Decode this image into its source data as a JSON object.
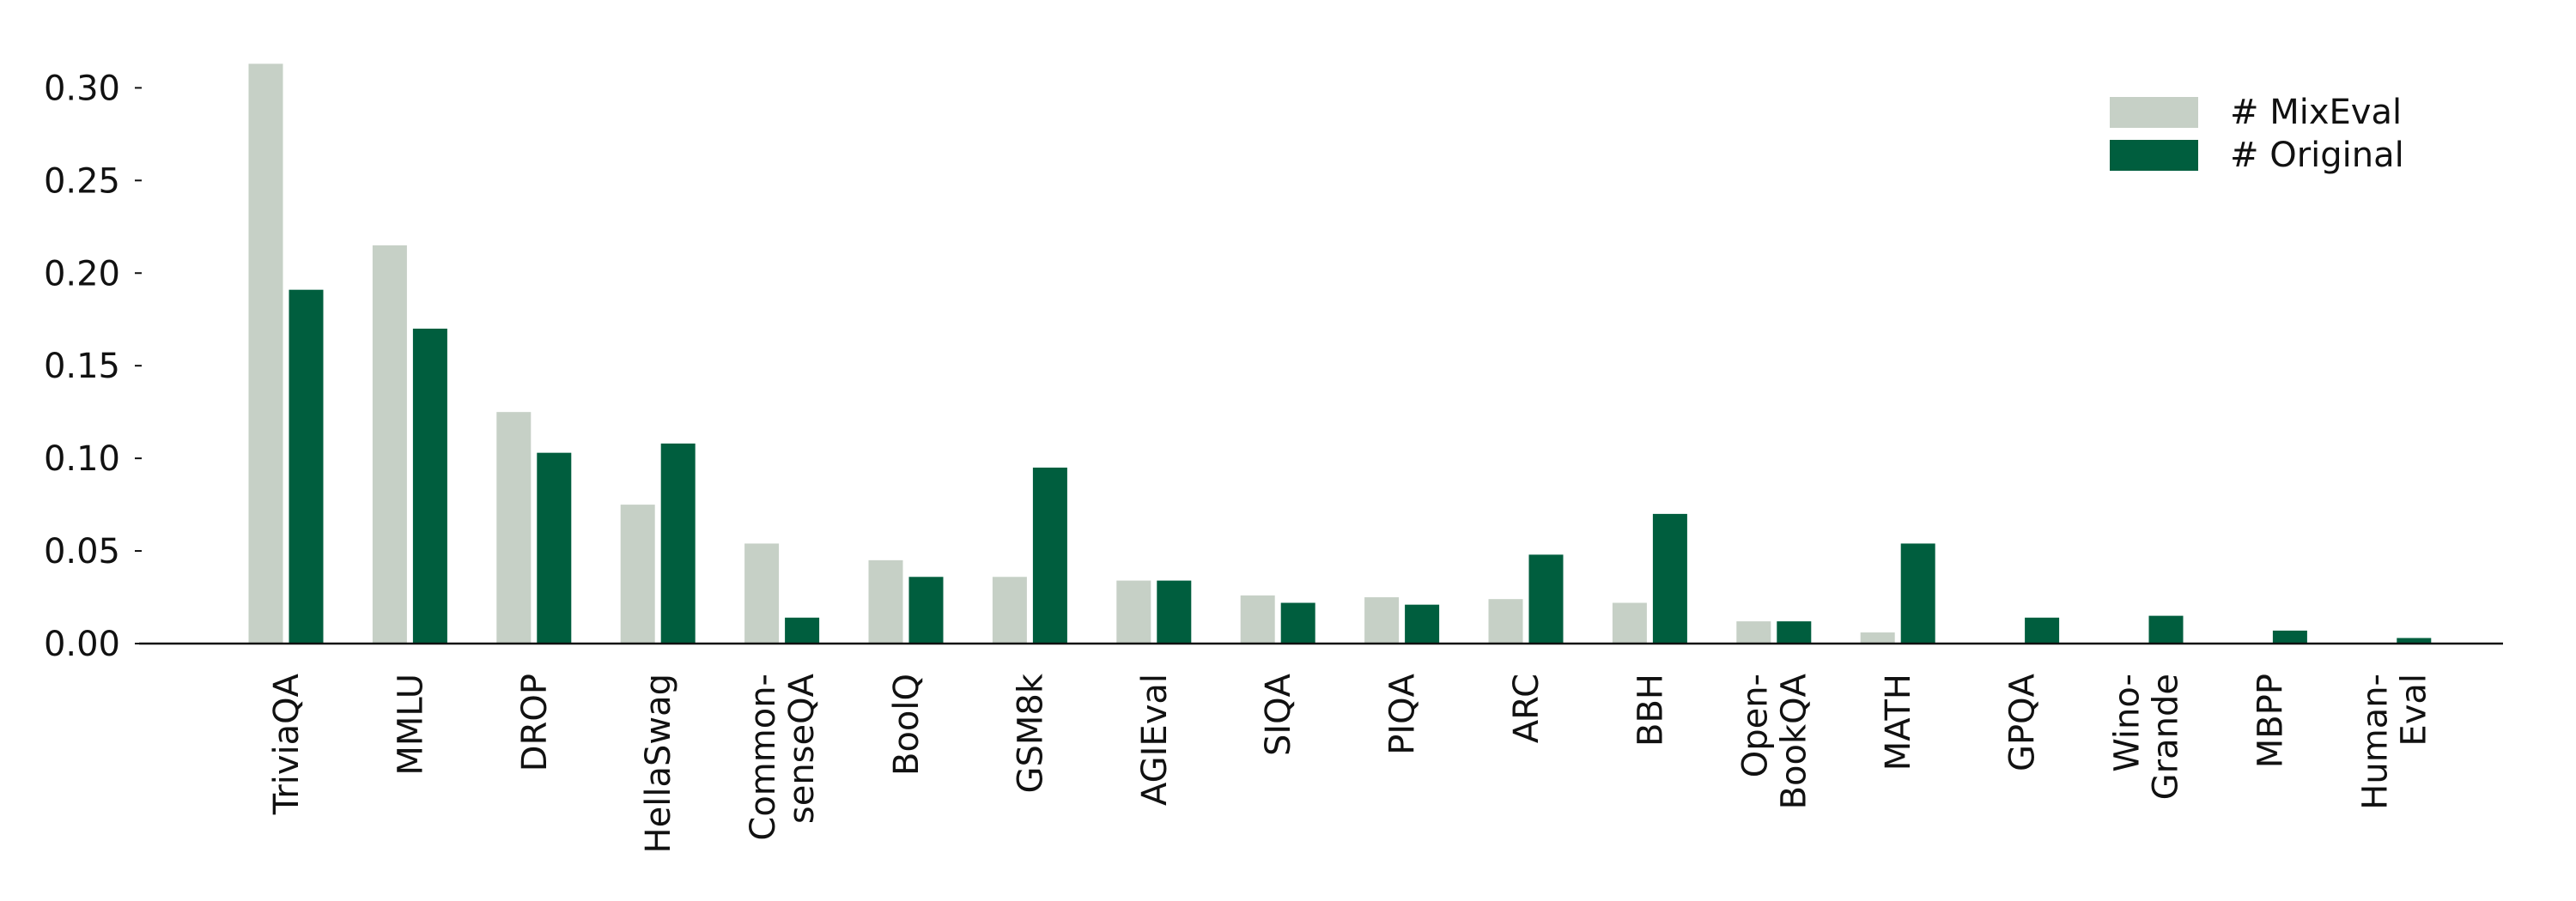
{
  "chart_data": {
    "type": "bar",
    "categories": [
      [
        "TriviaQA"
      ],
      [
        "MMLU"
      ],
      [
        "DROP"
      ],
      [
        "HellaSwag"
      ],
      [
        "Common-",
        "senseQA"
      ],
      [
        "BoolQ"
      ],
      [
        "GSM8k"
      ],
      [
        "AGIEval"
      ],
      [
        "SIQA"
      ],
      [
        "PIQA"
      ],
      [
        "ARC"
      ],
      [
        "BBH"
      ],
      [
        "Open-",
        "BookQA"
      ],
      [
        "MATH"
      ],
      [
        "GPQA"
      ],
      [
        "Wino-",
        "Grande"
      ],
      [
        "MBPP"
      ],
      [
        "Human-",
        "Eval"
      ]
    ],
    "series": [
      {
        "name": "# MixEval",
        "color": "#c6d0c6",
        "values": [
          0.313,
          0.215,
          0.125,
          0.075,
          0.054,
          0.045,
          0.036,
          0.034,
          0.026,
          0.025,
          0.024,
          0.022,
          0.012,
          0.006,
          0.0,
          0.0,
          0.0,
          0.0
        ]
      },
      {
        "name": "# Original",
        "color": "#005e3e",
        "values": [
          0.191,
          0.17,
          0.103,
          0.108,
          0.014,
          0.036,
          0.095,
          0.034,
          0.022,
          0.021,
          0.048,
          0.07,
          0.012,
          0.054,
          0.014,
          0.015,
          0.007,
          0.003
        ]
      }
    ],
    "yticks": [
      "0.00",
      "0.05",
      "0.10",
      "0.15",
      "0.20",
      "0.25",
      "0.30"
    ],
    "ylim": [
      0,
      0.315
    ],
    "legend": "top-right",
    "grid": false,
    "title": "",
    "xlabel": "",
    "ylabel": ""
  }
}
